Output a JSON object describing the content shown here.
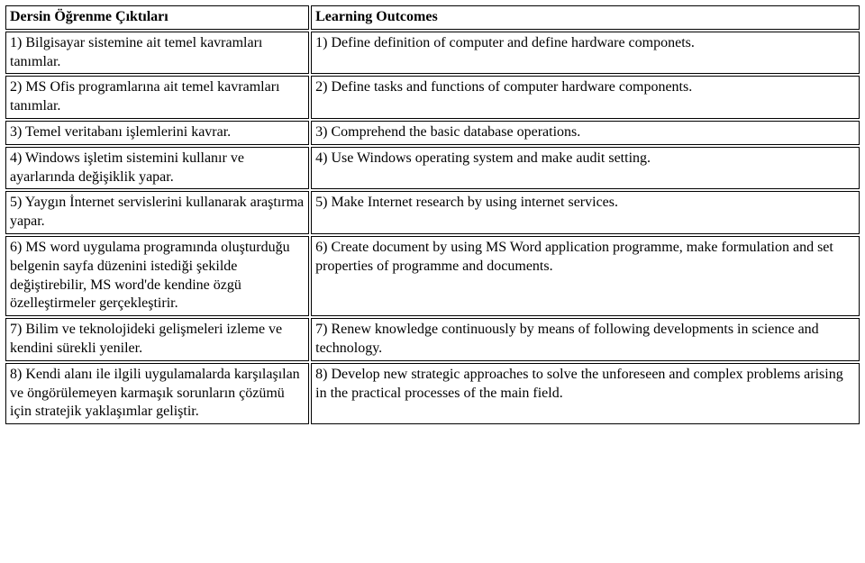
{
  "headers": {
    "left": "Dersin Öğrenme Çıktıları",
    "right": "Learning Outcomes"
  },
  "rows": [
    {
      "left": "  1) Bilgisayar sistemine ait temel kavramları tanımlar.",
      "right": "  1) Define definition of computer and define hardware componets."
    },
    {
      "left": "  2) MS Ofis programlarına ait temel kavramları tanımlar.",
      "right": "  2) Define tasks and functions of computer hardware components."
    },
    {
      "left": "  3) Temel veritabanı işlemlerini kavrar.",
      "right": "  3) Comprehend the basic database operations."
    },
    {
      "left": "  4) Windows işletim sistemini kullanır ve ayarlarında değişiklik yapar.",
      "right": "  4) Use Windows operating system and make audit setting."
    },
    {
      "left": "  5) Yaygın İnternet servislerini kullanarak araştırma yapar.",
      "right": "  5) Make Internet research by using internet services."
    },
    {
      "left": "  6) MS word uygulama programında oluşturduğu belgenin sayfa düzenini istediği şekilde değiştirebilir, MS word'de kendine özgü özelleştirmeler gerçekleştirir.",
      "right": "  6) Create document by using MS Word application programme, make formulation and set properties of programme and documents."
    },
    {
      "left": "  7) Bilim ve teknolojideki gelişmeleri izleme ve kendini sürekli yeniler.",
      "right": "  7) Renew knowledge continuously by means of following developments in science and technology."
    },
    {
      "left": "  8) Kendi alanı ile ilgili uygulamalarda karşılaşılan ve öngörülemeyen karmaşık sorunların çözümü için stratejik yaklaşımlar geliştir.",
      "right": "  8) Develop new strategic approaches to solve the unforeseen and complex problems arising in the practical processes of the main field."
    }
  ]
}
